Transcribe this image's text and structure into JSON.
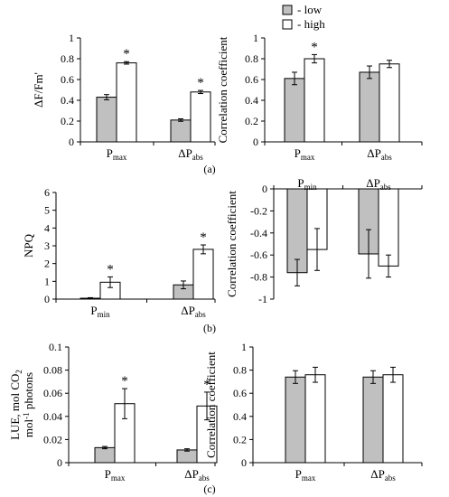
{
  "legend": {
    "placement": "top-center",
    "items": [
      {
        "key": "low",
        "label": "- low",
        "color": "#c0c0c0"
      },
      {
        "key": "high",
        "label": "- high",
        "color": "#ffffff"
      }
    ]
  },
  "panel_labels": [
    "(a)",
    "(b)",
    "(c)"
  ],
  "star": "*",
  "chart_data": [
    {
      "id": "a-left",
      "type": "bar",
      "ylabel": "ΔF/Fm'",
      "ylim": [
        0,
        1
      ],
      "yticks": [
        "0",
        "0.2",
        "0.4",
        "0.6",
        "0.8",
        "1"
      ],
      "ytick_values": [
        0,
        0.2,
        0.4,
        0.6,
        0.8,
        1
      ],
      "categories": [
        {
          "main": "P",
          "sub": "max"
        },
        {
          "main": "ΔP",
          "sub": "abs"
        }
      ],
      "series": [
        {
          "key": "low",
          "values": [
            0.43,
            0.21
          ],
          "errors": [
            0.025,
            0.012
          ]
        },
        {
          "key": "high",
          "values": [
            0.76,
            0.48
          ],
          "errors": [
            0.012,
            0.015
          ]
        }
      ],
      "significant": [
        true,
        true
      ],
      "grid": false
    },
    {
      "id": "a-right",
      "type": "bar",
      "ylabel": "Correlation coefficient",
      "ylim": [
        0,
        1
      ],
      "yticks": [
        "0",
        "0.2",
        "0.4",
        "0.6",
        "0.8",
        "1"
      ],
      "ytick_values": [
        0,
        0.2,
        0.4,
        0.6,
        0.8,
        1
      ],
      "categories": [
        {
          "main": "P",
          "sub": "max"
        },
        {
          "main": "ΔP",
          "sub": "abs"
        }
      ],
      "series": [
        {
          "key": "low",
          "values": [
            0.61,
            0.67
          ],
          "errors": [
            0.06,
            0.06
          ]
        },
        {
          "key": "high",
          "values": [
            0.8,
            0.75
          ],
          "errors": [
            0.04,
            0.035
          ]
        }
      ],
      "significant": [
        true,
        false
      ],
      "grid": false
    },
    {
      "id": "b-left",
      "type": "bar",
      "ylabel": "NPQ",
      "ylim": [
        0,
        6
      ],
      "yticks": [
        "0",
        "1",
        "2",
        "3",
        "4",
        "5",
        "6"
      ],
      "ytick_values": [
        0,
        1,
        2,
        3,
        4,
        5,
        6
      ],
      "categories": [
        {
          "main": "P",
          "sub": "min"
        },
        {
          "main": "ΔP",
          "sub": "abs"
        }
      ],
      "series": [
        {
          "key": "low",
          "values": [
            0.05,
            0.8
          ],
          "errors": [
            0.03,
            0.22
          ]
        },
        {
          "key": "high",
          "values": [
            0.95,
            2.8
          ],
          "errors": [
            0.3,
            0.25
          ]
        }
      ],
      "significant": [
        true,
        true
      ],
      "grid": false
    },
    {
      "id": "b-right",
      "type": "bar",
      "ylabel": "Correlation coefficient",
      "ylim": [
        -1,
        0
      ],
      "yticks": [
        "-1",
        "-0.8",
        "-0.6",
        "-0.4",
        "-0.2",
        "0"
      ],
      "ytick_values": [
        -1,
        -0.8,
        -0.6,
        -0.4,
        -0.2,
        0
      ],
      "categories": [
        {
          "main": "P",
          "sub": "min"
        },
        {
          "main": "ΔP",
          "sub": "abs"
        }
      ],
      "category_labels_position": "top",
      "series": [
        {
          "key": "low",
          "values": [
            -0.76,
            -0.59
          ],
          "errors": [
            0.12,
            0.22
          ]
        },
        {
          "key": "high",
          "values": [
            -0.55,
            -0.7
          ],
          "errors": [
            0.19,
            0.1
          ]
        }
      ],
      "significant": [
        false,
        false
      ],
      "grid": false
    },
    {
      "id": "c-left",
      "type": "bar",
      "ylabel_lines": [
        "LUE, mol CO",
        "2",
        "mol",
        "-1",
        " photons"
      ],
      "ylim": [
        0,
        0.1
      ],
      "yticks": [
        "0",
        "0.02",
        "0.04",
        "0.06",
        "0.08",
        "0.1"
      ],
      "ytick_values": [
        0,
        0.02,
        0.04,
        0.06,
        0.08,
        0.1
      ],
      "categories": [
        {
          "main": "P",
          "sub": "max"
        },
        {
          "main": "ΔP",
          "sub": "abs"
        }
      ],
      "series": [
        {
          "key": "low",
          "values": [
            0.013,
            0.011
          ],
          "errors": [
            0.001,
            0.001
          ]
        },
        {
          "key": "high",
          "values": [
            0.051,
            0.049
          ],
          "errors": [
            0.013,
            0.012
          ]
        }
      ],
      "significant": [
        true,
        true
      ],
      "grid": false
    },
    {
      "id": "c-right",
      "type": "bar",
      "ylabel": "Correlation coefficient",
      "ylim": [
        0,
        1
      ],
      "yticks": [
        "0",
        "0.2",
        "0.4",
        "0.6",
        "0.8",
        "1"
      ],
      "ytick_values": [
        0,
        0.2,
        0.4,
        0.6,
        0.8,
        1
      ],
      "categories": [
        {
          "main": "P",
          "sub": "max"
        },
        {
          "main": "ΔP",
          "sub": "abs"
        }
      ],
      "series": [
        {
          "key": "low",
          "values": [
            0.74,
            0.74
          ],
          "errors": [
            0.055,
            0.055
          ]
        },
        {
          "key": "high",
          "values": [
            0.76,
            0.76
          ],
          "errors": [
            0.065,
            0.065
          ]
        }
      ],
      "significant": [
        false,
        false
      ],
      "grid": false
    }
  ]
}
